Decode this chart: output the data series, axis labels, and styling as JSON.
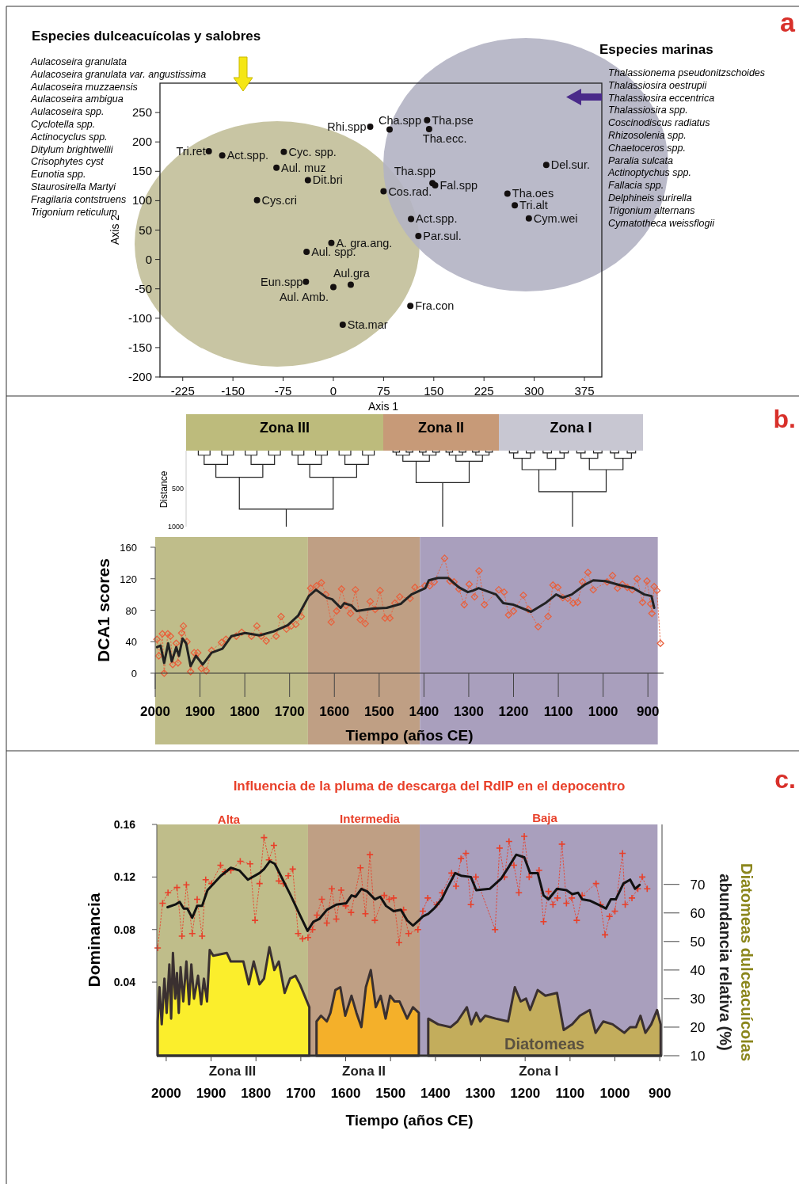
{
  "chart_data": [
    {
      "type": "scatter",
      "xlabel": "Axis 1",
      "ylabel": "Axis 2",
      "xlim": [
        -259,
        401
      ],
      "ylim": [
        -200,
        300
      ],
      "xticks": [
        -225,
        -150,
        -75,
        0,
        75,
        150,
        225,
        300,
        375
      ],
      "yticks": [
        -200,
        -150,
        -100,
        -50,
        0,
        50,
        100,
        150,
        200,
        250
      ],
      "marker": "circle",
      "series": [
        {
          "color": "#141010",
          "x": [
            -186,
            -166,
            -74,
            -85,
            -38,
            -114,
            55,
            84,
            140,
            143,
            148,
            152,
            75,
            318,
            260,
            271,
            292,
            116,
            127,
            -3,
            -40,
            -41,
            26,
            0,
            115,
            14
          ],
          "values": [
            184,
            177,
            183,
            156,
            135,
            101,
            226,
            221,
            237,
            222,
            130,
            126,
            116,
            161,
            112,
            92,
            70,
            69,
            40,
            28,
            13,
            -38,
            -43,
            -47,
            -79,
            -111
          ]
        }
      ],
      "annotations": [
        {
          "text": "Tri.ret",
          "x": -186,
          "y": 184
        },
        {
          "text": "Act.spp.",
          "x": -166,
          "y": 177
        },
        {
          "text": "Cyc. spp.",
          "x": -74,
          "y": 183
        },
        {
          "text": "Aul. muz",
          "x": -85,
          "y": 156
        },
        {
          "text": "Dit.bri",
          "x": -38,
          "y": 135
        },
        {
          "text": "Cys.cri",
          "x": -114,
          "y": 101
        },
        {
          "text": "Rhi.spp",
          "x": 55,
          "y": 226
        },
        {
          "text": "Cha.spp",
          "x": 84,
          "y": 221
        },
        {
          "text": "Tha.pse",
          "x": 140,
          "y": 237
        },
        {
          "text": "Tha.ecc.",
          "x": 143,
          "y": 222
        },
        {
          "text": "Tha.spp",
          "x": 148,
          "y": 130
        },
        {
          "text": "Fal.spp",
          "x": 152,
          "y": 126
        },
        {
          "text": "Cos.rad.",
          "x": 75,
          "y": 116
        },
        {
          "text": "Del.sur.",
          "x": 318,
          "y": 161
        },
        {
          "text": "Tha.oes",
          "x": 260,
          "y": 112
        },
        {
          "text": "Tri.alt",
          "x": 271,
          "y": 92
        },
        {
          "text": "Cym.wei",
          "x": 292,
          "y": 70
        },
        {
          "text": "Act.spp.",
          "x": 116,
          "y": 69
        },
        {
          "text": "Par.sul.",
          "x": 127,
          "y": 40
        },
        {
          "text": "A. gra.ang.",
          "x": -3,
          "y": 28
        },
        {
          "text": "Aul. spp.",
          "x": -40,
          "y": 13
        },
        {
          "text": "Eun.spp",
          "x": -41,
          "y": -38
        },
        {
          "text": "Aul.gra",
          "x": 26,
          "y": -43
        },
        {
          "text": "Aul. Amb.",
          "x": 0,
          "y": -47
        },
        {
          "text": "Fra.con",
          "x": 115,
          "y": -79
        },
        {
          "text": "Sta.mar",
          "x": 14,
          "y": -111
        },
        "Especies dulceacuícolas y salobres",
        "Aulacoseira granulata",
        "Aulacoseira granulata var. angustissima",
        "Aulacoseira muzzaensis",
        "Aulacoseira ambigua",
        "Aulacoseira spp.",
        "Cyclotella spp.",
        "Actinocyclus spp.",
        "Ditylum brightwellii",
        "Crisophytes cyst",
        "Eunotia spp.",
        "Staurosirella Martyi",
        "Fragilaria contstruens",
        "Trigonium reticulum",
        "Especies marinas",
        "Thalassionema pseudonitzschoides",
        "Thalassiosira oestrupii",
        "Thalassiosira eccentrica",
        "Thalassiosira spp.",
        "Coscinodiscus radiatus",
        "Rhizosolenia spp.",
        "Chaetoceros spp.",
        "Paralia sulcata",
        "Actinoptychus spp.",
        "Fallacia spp.",
        "Delphineis surirella",
        "Trigonium alternans",
        "Cymatotheca weissflogii",
        "a"
      ]
    },
    {
      "type": "other",
      "ylabel": "Distance",
      "annotations": [
        "Zona III",
        "Zona II",
        "Zona I",
        "500",
        "1000"
      ]
    },
    {
      "type": "line",
      "xlabel": "Tiempo (años CE)",
      "ylabel": "DCA1 scores",
      "xlim": [
        2000,
        865
      ],
      "ylim": [
        0,
        160
      ],
      "xticks": [
        2000,
        1900,
        1800,
        1700,
        1600,
        1500,
        1400,
        1300,
        1200,
        1100,
        1000,
        900
      ],
      "yticks": [
        0,
        40,
        80,
        120,
        160
      ],
      "bands": [
        {
          "axis": "x",
          "from": 2000,
          "to": 1659,
          "color": "#bfbd8a"
        },
        {
          "axis": "x",
          "from": 1659,
          "to": 1409,
          "color": "#bf9f84"
        },
        {
          "axis": "x",
          "from": 1409,
          "to": 878,
          "color": "#a99fbd"
        }
      ],
      "series": [
        {
          "color": "#e8603c",
          "marker": "diamond",
          "line_style": "dotted",
          "x": [
            1996,
            1992,
            1984,
            1980,
            1972,
            1966,
            1961,
            1953,
            1949,
            1941,
            1937,
            1929,
            1921,
            1913,
            1905,
            1897,
            1886,
            1874,
            1852,
            1842,
            1819,
            1807,
            1785,
            1773,
            1763,
            1752,
            1730,
            1719,
            1707,
            1696,
            1686,
            1674,
            1653,
            1640,
            1629,
            1619,
            1607,
            1595,
            1584,
            1574,
            1564,
            1553,
            1542,
            1531,
            1520,
            1509,
            1498,
            1487,
            1476,
            1465,
            1454,
            1431,
            1420,
            1398,
            1387,
            1377,
            1354,
            1342,
            1333,
            1322,
            1310,
            1299,
            1287,
            1277,
            1265,
            1233,
            1221,
            1211,
            1200,
            1178,
            1167,
            1145,
            1123,
            1112,
            1101,
            1090,
            1079,
            1067,
            1057,
            1046,
            1034,
            1022,
            991,
            979,
            968,
            957,
            946,
            935,
            924,
            912,
            902,
            894,
            891,
            886,
            880,
            872
          ],
          "values": [
            43,
            22,
            50,
            0,
            50,
            47,
            11,
            38,
            13,
            51,
            60,
            40,
            2,
            26,
            26,
            6,
            3,
            29,
            39,
            43,
            47,
            52,
            47,
            60,
            47,
            41,
            47,
            72,
            56,
            60,
            62,
            72,
            108,
            111,
            115,
            100,
            65,
            79,
            107,
            86,
            76,
            106,
            68,
            63,
            91,
            81,
            105,
            70,
            70,
            89,
            97,
            95,
            109,
            111,
            111,
            116,
            146,
            117,
            116,
            107,
            87,
            113,
            97,
            130,
            87,
            106,
            103,
            74,
            79,
            99,
            81,
            59,
            72,
            112,
            109,
            96,
            95,
            89,
            90,
            116,
            128,
            106,
            116,
            124,
            108,
            113,
            109,
            106,
            120,
            90,
            117,
            88,
            76,
            110,
            105,
            38
          ]
        },
        {
          "color": "#222222",
          "marker": "none",
          "line_style": "solid",
          "x": [
            1996,
            1988,
            1980,
            1971,
            1963,
            1953,
            1947,
            1939,
            1931,
            1921,
            1909,
            1894,
            1874,
            1850,
            1830,
            1799,
            1767,
            1736,
            1704,
            1681,
            1657,
            1641,
            1617,
            1605,
            1586,
            1578,
            1562,
            1550,
            1515,
            1483,
            1452,
            1428,
            1397,
            1389,
            1369,
            1346,
            1322,
            1302,
            1290,
            1278,
            1239,
            1223,
            1200,
            1161,
            1129,
            1105,
            1090,
            1070,
            1042,
            1022,
            995,
            963,
            932,
            908,
            892,
            886
          ],
          "values": [
            33,
            35,
            13,
            38,
            15,
            33,
            22,
            44,
            38,
            9,
            22,
            11,
            26,
            31,
            47,
            51,
            48,
            53,
            61,
            73,
            98,
            106,
            96,
            94,
            83,
            89,
            86,
            79,
            82,
            83,
            88,
            100,
            108,
            118,
            121,
            121,
            109,
            103,
            105,
            108,
            100,
            89,
            87,
            78,
            89,
            100,
            96,
            100,
            112,
            118,
            117,
            112,
            108,
            100,
            98,
            83
          ]
        }
      ],
      "annotations": [
        "b."
      ]
    },
    {
      "type": "line",
      "title": "Influencia de la pluma de descarga del RdIP en el depocentro",
      "xlabel": "Tiempo (años CE)",
      "ylabel": "Dominancia",
      "y2label": "Diatomeas dulceacuícolas\nabundancia relativa (%)",
      "xlim": [
        2021,
        895
      ],
      "ylim": [
        -0.016,
        0.16
      ],
      "yticks": [
        0.04,
        0.08,
        0.12,
        0.16
      ],
      "y2lim": [
        10,
        91
      ],
      "y2ticks": [
        10,
        20,
        30,
        40,
        50,
        60,
        70
      ],
      "xticks": [
        2000,
        1900,
        1800,
        1700,
        1600,
        1500,
        1400,
        1300,
        1200,
        1100,
        1000,
        900
      ],
      "bands": [
        {
          "axis": "x",
          "from": 2021,
          "to": 1684,
          "color": "#bfbd8a",
          "label": "Zona III"
        },
        {
          "axis": "x",
          "from": 1684,
          "to": 1435,
          "color": "#bf9f84",
          "label": "Zona II"
        },
        {
          "axis": "x",
          "from": 1435,
          "to": 905,
          "color": "#a99fbd",
          "label": "Zona I"
        }
      ],
      "series": [
        {
          "type": "area",
          "axis": "y2",
          "color": "#fbee2c",
          "x": [
            2019,
            2015,
            2010,
            2004,
            1999,
            1993,
            1989,
            1985,
            1980,
            1976,
            1972,
            1968,
            1962,
            1955,
            1949,
            1944,
            1938,
            1929,
            1922,
            1916,
            1909,
            1903,
            1895,
            1865,
            1856,
            1843,
            1828,
            1816,
            1805,
            1792,
            1782,
            1770,
            1759,
            1749,
            1736,
            1724,
            1712,
            1702,
            1681
          ],
          "values": [
            22,
            34,
            21,
            37,
            25,
            42,
            23,
            46,
            30,
            39,
            25,
            41,
            29,
            43,
            28,
            42,
            30,
            38,
            28,
            37,
            29,
            47,
            45,
            46,
            43,
            43,
            43,
            35,
            43,
            35,
            37,
            48,
            40,
            43,
            32,
            37,
            38,
            35,
            27
          ]
        },
        {
          "type": "area",
          "axis": "y2",
          "color": "#f4b02a",
          "x": [
            1665,
            1655,
            1642,
            1634,
            1623,
            1612,
            1601,
            1587,
            1576,
            1565,
            1555,
            1544,
            1533,
            1522,
            1511,
            1501,
            1491,
            1480,
            1463,
            1450,
            1437
          ],
          "values": [
            22,
            24,
            22,
            25,
            33,
            34,
            24,
            31,
            25,
            20,
            34,
            40,
            27,
            31,
            23,
            31,
            29,
            29,
            23,
            27,
            25
          ]
        },
        {
          "type": "area",
          "axis": "y2",
          "name": "Diatomeas",
          "color": "#c3ad5c",
          "x": [
            1416,
            1394,
            1366,
            1351,
            1330,
            1320,
            1309,
            1300,
            1289,
            1266,
            1238,
            1223,
            1210,
            1198,
            1189,
            1172,
            1155,
            1129,
            1114,
            1095,
            1078,
            1056,
            1043,
            1026,
            1005,
            979,
            966,
            953,
            943,
            932,
            919,
            906,
            898
          ],
          "values": [
            23,
            21,
            20,
            22,
            27,
            21,
            25,
            22,
            24,
            23,
            22,
            34,
            29,
            30,
            26,
            33,
            31,
            32,
            19,
            21,
            24,
            26,
            18,
            22,
            21,
            18,
            20,
            20,
            24,
            18,
            21,
            26,
            21
          ]
        },
        {
          "type": "line",
          "color": "#e8402a",
          "marker": "cross",
          "line_style": "dotted",
          "x": [
            2019,
            2008,
            1996,
            1976,
            1965,
            1955,
            1942,
            1931,
            1920,
            1912,
            1899,
            1879,
            1869,
            1856,
            1835,
            1813,
            1802,
            1792,
            1782,
            1771,
            1760,
            1749,
            1739,
            1728,
            1718,
            1706,
            1696,
            1684,
            1674,
            1664,
            1653,
            1642,
            1631,
            1621,
            1610,
            1600,
            1588,
            1567,
            1556,
            1546,
            1535,
            1514,
            1503,
            1493,
            1481,
            1471,
            1460,
            1439,
            1428,
            1417,
            1397,
            1385,
            1364,
            1354,
            1343,
            1332,
            1321,
            1310,
            1267,
            1257,
            1246,
            1236,
            1225,
            1214,
            1202,
            1191,
            1169,
            1159,
            1148,
            1138,
            1128,
            1118,
            1108,
            1096,
            1085,
            1073,
            1042,
            1032,
            1022,
            1012,
            1000,
            983,
            977,
            962,
            949,
            939,
            928
          ],
          "values": [
            0.066,
            0.1,
            0.108,
            0.112,
            0.075,
            0.114,
            0.077,
            0.103,
            0.075,
            0.118,
            0.115,
            0.129,
            0.124,
            0.125,
            0.132,
            0.13,
            0.087,
            0.115,
            0.15,
            0.133,
            0.144,
            0.117,
            0.115,
            0.121,
            0.126,
            0.077,
            0.073,
            0.074,
            0.08,
            0.091,
            0.103,
            0.085,
            0.111,
            0.088,
            0.11,
            0.098,
            0.093,
            0.127,
            0.092,
            0.137,
            0.087,
            0.106,
            0.103,
            0.104,
            0.07,
            0.095,
            0.077,
            0.08,
            0.094,
            0.104,
            0.099,
            0.108,
            0.123,
            0.113,
            0.134,
            0.138,
            0.099,
            0.12,
            0.08,
            0.142,
            0.12,
            0.147,
            0.129,
            0.108,
            0.151,
            0.12,
            0.125,
            0.086,
            0.109,
            0.099,
            0.104,
            0.145,
            0.1,
            0.104,
            0.087,
            0.106,
            0.115,
            0.099,
            0.076,
            0.09,
            0.094,
            0.138,
            0.099,
            0.104,
            0.111,
            0.12,
            0.111
          ]
        },
        {
          "type": "line",
          "color": "#111111",
          "marker": "none",
          "line_style": "solid",
          "x": [
            1997,
            1980,
            1970,
            1961,
            1953,
            1942,
            1931,
            1920,
            1908,
            1878,
            1856,
            1837,
            1818,
            1792,
            1782,
            1769,
            1758,
            1724,
            1702,
            1685,
            1672,
            1659,
            1642,
            1621,
            1599,
            1587,
            1578,
            1565,
            1552,
            1535,
            1523,
            1510,
            1493,
            1477,
            1463,
            1450,
            1437,
            1428,
            1416,
            1403,
            1386,
            1373,
            1356,
            1343,
            1321,
            1309,
            1279,
            1253,
            1236,
            1220,
            1202,
            1189,
            1172,
            1159,
            1148,
            1129,
            1108,
            1095,
            1082,
            1073,
            1056,
            1031,
            1020,
            1009,
            998,
            981,
            966,
            955,
            945
          ],
          "values": [
            0.097,
            0.099,
            0.101,
            0.096,
            0.096,
            0.089,
            0.098,
            0.098,
            0.11,
            0.121,
            0.127,
            0.125,
            0.118,
            0.123,
            0.126,
            0.132,
            0.13,
            0.107,
            0.091,
            0.079,
            0.086,
            0.088,
            0.095,
            0.099,
            0.1,
            0.106,
            0.105,
            0.111,
            0.109,
            0.103,
            0.105,
            0.098,
            0.094,
            0.095,
            0.087,
            0.083,
            0.087,
            0.09,
            0.092,
            0.096,
            0.103,
            0.112,
            0.123,
            0.121,
            0.12,
            0.11,
            0.111,
            0.119,
            0.128,
            0.137,
            0.135,
            0.123,
            0.123,
            0.106,
            0.103,
            0.111,
            0.11,
            0.107,
            0.108,
            0.103,
            0.102,
            0.098,
            0.096,
            0.103,
            0.103,
            0.115,
            0.118,
            0.111,
            0.114
          ]
        }
      ],
      "annotations": [
        "Alta",
        "Intermedia",
        "Baja",
        "c."
      ]
    }
  ]
}
